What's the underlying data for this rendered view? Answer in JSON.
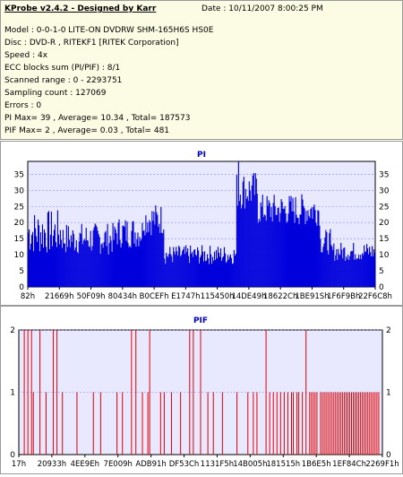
{
  "header": {
    "title": "KProbe v2.4.2 - Designed by Karr",
    "date": "Date : 10/11/2007 8:00:25 PM"
  },
  "info_lines": [
    "Model : 0-0-1-0 LITE-ON DVDRW SHM-165H6S HS0E",
    "Disc : DVD-R , RITEKF1 [RITEK Corporation]",
    "Speed : 4x",
    "ECC blocks sum (PI/PIF) : 8/1",
    "Scanned range : 0 - 2293751",
    "Sampling count : 127069",
    "Errors : 0",
    "PI Max= 39 , Average= 10.34 , Total= 187573",
    "PIF Max= 2 , Average= 0.03 , Total= 481"
  ],
  "colors": {
    "info_bg": "#fcfbe3",
    "plot_bg": "#e8e8ff",
    "pi_series": "#0000dd",
    "pif_series": "#e00000",
    "title": "#0000cc"
  },
  "chart_data": [
    {
      "type": "bar",
      "title": "PI",
      "xlabel": "",
      "ylabel": "",
      "ylim": [
        0,
        39
      ],
      "y_ticks": [
        0,
        5,
        10,
        15,
        20,
        25,
        30,
        35
      ],
      "grid": true,
      "x_tick_labels": [
        "82h",
        "21669h",
        "50F09h",
        "80434h",
        "B0CEFh",
        "E1747h",
        "115450h",
        "14DE49h",
        "18622Ch",
        "1BE91Sh",
        "1F6F9Bh",
        "22F6C8h"
      ],
      "segments": [
        {
          "from": 0.0,
          "to": 0.1,
          "base": 17,
          "amp": 7
        },
        {
          "from": 0.1,
          "to": 0.25,
          "base": 15,
          "amp": 5
        },
        {
          "from": 0.25,
          "to": 0.33,
          "base": 17,
          "amp": 5
        },
        {
          "from": 0.33,
          "to": 0.39,
          "base": 21,
          "amp": 5
        },
        {
          "from": 0.39,
          "to": 0.6,
          "base": 10,
          "amp": 3
        },
        {
          "from": 0.6,
          "to": 0.66,
          "base": 30,
          "amp": 6
        },
        {
          "from": 0.66,
          "to": 0.84,
          "base": 24,
          "amp": 5
        },
        {
          "from": 0.84,
          "to": 0.87,
          "base": 14,
          "amp": 4
        },
        {
          "from": 0.87,
          "to": 1.0,
          "base": 11,
          "amp": 3
        }
      ],
      "bar_count": 390,
      "spikes": [
        {
          "at": 0.605,
          "value": 39
        }
      ]
    },
    {
      "type": "bar",
      "title": "PIF",
      "xlabel": "",
      "ylabel": "",
      "ylim": [
        0,
        2
      ],
      "y_ticks": [
        0,
        1,
        2
      ],
      "grid": true,
      "x_tick_labels": [
        "17h",
        "20933h",
        "4EE9Eh",
        "7E009h",
        "ADB91h",
        "DF53Ch",
        "1131F5h",
        "14B005h",
        "181515h",
        "1B6E5h",
        "1EF84Ch",
        "2269F1h"
      ],
      "twos": [
        0.015,
        0.025,
        0.035,
        0.058,
        0.095,
        0.105,
        0.31,
        0.322,
        0.36,
        0.47,
        0.48,
        0.5,
        0.68,
        0.79
      ],
      "ones": [
        0.04,
        0.075,
        0.12,
        0.16,
        0.205,
        0.225,
        0.27,
        0.285,
        0.34,
        0.355,
        0.39,
        0.4,
        0.42,
        0.445,
        0.52,
        0.535,
        0.56,
        0.6,
        0.63,
        0.645,
        0.655,
        0.69,
        0.7,
        0.71,
        0.72,
        0.73,
        0.74,
        0.75,
        0.755,
        0.765,
        0.77,
        0.78,
        0.8,
        0.805,
        0.81,
        0.815,
        0.82,
        0.83,
        0.835,
        0.84,
        0.845,
        0.85,
        0.855,
        0.86,
        0.865,
        0.87,
        0.875,
        0.88,
        0.885,
        0.89,
        0.895,
        0.9,
        0.905,
        0.91,
        0.915,
        0.92,
        0.925,
        0.93,
        0.935,
        0.94,
        0.945,
        0.95,
        0.955,
        0.96,
        0.965,
        0.97,
        0.975,
        0.98,
        0.985,
        0.99
      ]
    }
  ]
}
